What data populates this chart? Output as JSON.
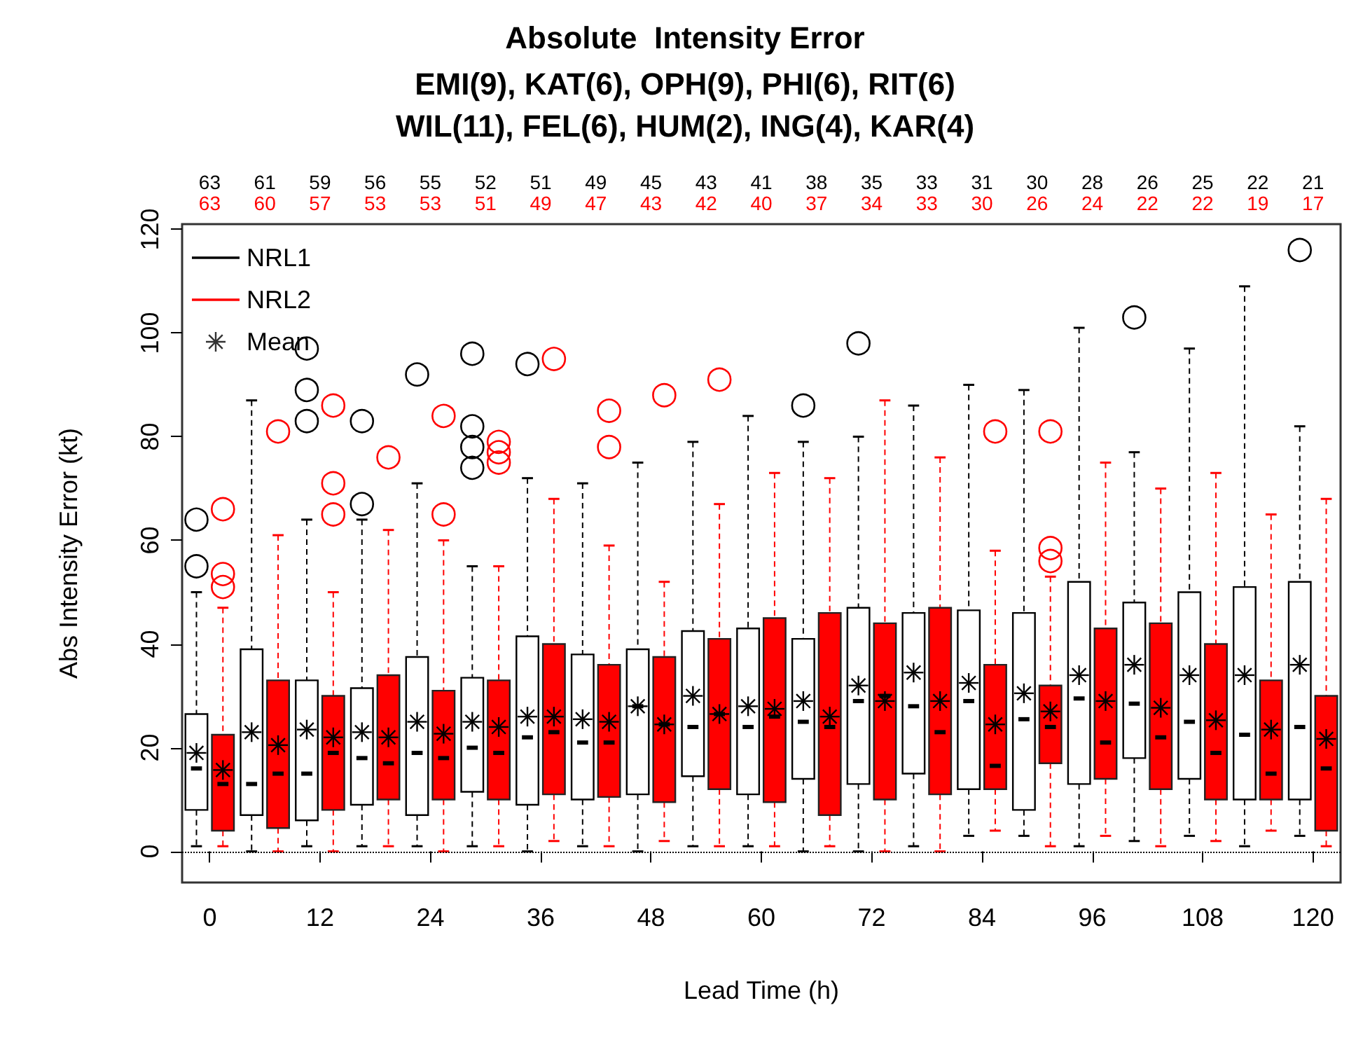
{
  "chart_data": {
    "type": "box",
    "title": "Absolute  Intensity Error",
    "subtitle": "EMI(9), KAT(6), OPH(9), PHI(6), RIT(6)\nWIL(11), FEL(6), HUM(2), ING(4), KAR(4)",
    "xlabel": "Lead Time (h)",
    "ylabel": "Abs Intensity Error (kt)",
    "annotations": [
      "Mean"
    ],
    "categories": [
      "0",
      null,
      "12",
      null,
      "24",
      null,
      "36",
      null,
      "48",
      null,
      "60",
      null,
      "72",
      null,
      "84",
      null,
      "96",
      null,
      "108",
      null,
      "120"
    ],
    "ylim": [
      -6,
      121
    ],
    "yticks": [
      0,
      20,
      40,
      60,
      80,
      100,
      120
    ],
    "legend": "top left",
    "ref_lines": [
      {
        "axis": "y",
        "value": 0,
        "color": "#000000",
        "line_style": "dotted"
      }
    ],
    "series": [
      {
        "name": "NRL1",
        "color": "#000000",
        "value_labels": [
          "63",
          "61",
          "59",
          "56",
          "55",
          "52",
          "51",
          "49",
          "45",
          "43",
          "41",
          "38",
          "35",
          "33",
          "31",
          "30",
          "28",
          "26",
          "25",
          "22",
          "21"
        ],
        "boxes": [
          {
            "low": 1,
            "q1": 8,
            "median": 16,
            "q3": 26.5,
            "high": 50,
            "mean": 19,
            "outliers": [
              55,
              64
            ]
          },
          {
            "low": 0,
            "q1": 7,
            "median": 13,
            "q3": 39,
            "high": 87,
            "mean": 23
          },
          {
            "low": 1,
            "q1": 6,
            "median": 15,
            "q3": 33,
            "high": 64,
            "mean": 23.5,
            "outliers": [
              83,
              89,
              97
            ]
          },
          {
            "low": 1,
            "q1": 9,
            "median": 18,
            "q3": 31.5,
            "high": 64,
            "mean": 23,
            "outliers": [
              67,
              83
            ]
          },
          {
            "low": 1,
            "q1": 7,
            "median": 19,
            "q3": 37.5,
            "high": 71,
            "mean": 25,
            "outliers": [
              92
            ]
          },
          {
            "low": 1,
            "q1": 11.5,
            "median": 20,
            "q3": 33.5,
            "high": 55,
            "mean": 25,
            "outliers": [
              74,
              78,
              82,
              96
            ]
          },
          {
            "low": 0,
            "q1": 9,
            "median": 22,
            "q3": 41.5,
            "high": 72,
            "mean": 26,
            "outliers": [
              94
            ]
          },
          {
            "low": 1,
            "q1": 10,
            "median": 21,
            "q3": 38,
            "high": 71,
            "mean": 25.5
          },
          {
            "low": 0,
            "q1": 11,
            "median": 28,
            "q3": 39,
            "high": 75,
            "mean": 28
          },
          {
            "low": 1,
            "q1": 14.5,
            "median": 24,
            "q3": 42.5,
            "high": 79,
            "mean": 30
          },
          {
            "low": 1,
            "q1": 11,
            "median": 24,
            "q3": 43,
            "high": 84,
            "mean": 28
          },
          {
            "low": 0,
            "q1": 14,
            "median": 25,
            "q3": 41,
            "high": 79,
            "mean": 29,
            "outliers": [
              86
            ]
          },
          {
            "low": 0,
            "q1": 13,
            "median": 29,
            "q3": 47,
            "high": 80,
            "mean": 32,
            "outliers": [
              98
            ]
          },
          {
            "low": 1,
            "q1": 15,
            "median": 28,
            "q3": 46,
            "high": 86,
            "mean": 34.5
          },
          {
            "low": 3,
            "q1": 12,
            "median": 29,
            "q3": 46.5,
            "high": 90,
            "mean": 32.5
          },
          {
            "low": 3,
            "q1": 8,
            "median": 25.5,
            "q3": 46,
            "high": 89,
            "mean": 30.5
          },
          {
            "low": 1,
            "q1": 13,
            "median": 29.5,
            "q3": 52,
            "high": 101,
            "mean": 34
          },
          {
            "low": 2,
            "q1": 18,
            "median": 28.5,
            "q3": 48,
            "high": 77,
            "mean": 36,
            "outliers": [
              103
            ]
          },
          {
            "low": 3,
            "q1": 14,
            "median": 25,
            "q3": 50,
            "high": 97,
            "mean": 34
          },
          {
            "low": 1,
            "q1": 10,
            "median": 22.5,
            "q3": 51,
            "high": 109,
            "mean": 34
          },
          {
            "low": 3,
            "q1": 10,
            "median": 24,
            "q3": 52,
            "high": 82,
            "mean": 36,
            "outliers": [
              116
            ]
          }
        ]
      },
      {
        "name": "NRL2",
        "color": "#ff0000",
        "value_labels": [
          "63",
          "60",
          "57",
          "53",
          "53",
          "51",
          "49",
          "47",
          "43",
          "42",
          "40",
          "37",
          "34",
          "33",
          "30",
          "26",
          "24",
          "22",
          "22",
          "19",
          "17"
        ],
        "boxes": [
          {
            "low": 1,
            "q1": 4,
            "median": 13,
            "q3": 22.5,
            "high": 47,
            "mean": 15.7,
            "outliers": [
              51,
              53.5,
              66
            ]
          },
          {
            "low": 0,
            "q1": 4.5,
            "median": 15,
            "q3": 33,
            "high": 61,
            "mean": 20.5,
            "outliers": [
              81
            ]
          },
          {
            "low": 0,
            "q1": 8,
            "median": 19,
            "q3": 30,
            "high": 50,
            "mean": 22,
            "outliers": [
              65,
              71,
              86
            ]
          },
          {
            "low": 1,
            "q1": 10,
            "median": 17,
            "q3": 34,
            "high": 62,
            "mean": 22,
            "outliers": [
              76
            ]
          },
          {
            "low": 0,
            "q1": 10,
            "median": 18,
            "q3": 31,
            "high": 60,
            "mean": 22.7,
            "outliers": [
              65,
              84
            ]
          },
          {
            "low": 1,
            "q1": 10,
            "median": 19,
            "q3": 33,
            "high": 55,
            "mean": 24,
            "outliers": [
              75,
              77,
              79
            ]
          },
          {
            "low": 2,
            "q1": 11,
            "median": 23,
            "q3": 40,
            "high": 68,
            "mean": 26,
            "outliers": [
              95
            ]
          },
          {
            "low": 1,
            "q1": 10.5,
            "median": 21,
            "q3": 36,
            "high": 59,
            "mean": 25,
            "outliers": [
              78,
              85
            ]
          },
          {
            "low": 2,
            "q1": 9.5,
            "median": 24.5,
            "q3": 37.5,
            "high": 52,
            "mean": 24.5,
            "outliers": [
              88
            ]
          },
          {
            "low": 1,
            "q1": 12,
            "median": 26.5,
            "q3": 41,
            "high": 67,
            "mean": 26.5,
            "outliers": [
              91
            ]
          },
          {
            "low": 1,
            "q1": 9.5,
            "median": 26,
            "q3": 45,
            "high": 73,
            "mean": 27.5
          },
          {
            "low": 1,
            "q1": 7,
            "median": 24,
            "q3": 46,
            "high": 72,
            "mean": 26
          },
          {
            "low": 0,
            "q1": 10,
            "median": 30,
            "q3": 44,
            "high": 87,
            "mean": 29
          },
          {
            "low": 0,
            "q1": 11,
            "median": 23,
            "q3": 47,
            "high": 76,
            "mean": 29
          },
          {
            "low": 4,
            "q1": 12,
            "median": 16.5,
            "q3": 36,
            "high": 58,
            "mean": 24.5,
            "outliers": [
              81
            ]
          },
          {
            "low": 1,
            "q1": 17,
            "median": 24,
            "q3": 32,
            "high": 53,
            "mean": 27,
            "outliers": [
              56,
              58.5,
              81
            ]
          },
          {
            "low": 3,
            "q1": 14,
            "median": 21,
            "q3": 43,
            "high": 75,
            "mean": 29
          },
          {
            "low": 1,
            "q1": 12,
            "median": 22,
            "q3": 44,
            "high": 70,
            "mean": 27.7
          },
          {
            "low": 2,
            "q1": 10,
            "median": 19,
            "q3": 40,
            "high": 73,
            "mean": 25.3
          },
          {
            "low": 4,
            "q1": 10,
            "median": 15,
            "q3": 33,
            "high": 65,
            "mean": 23.5
          },
          {
            "low": 1,
            "q1": 4,
            "median": 16,
            "q3": 30,
            "high": 68,
            "mean": 21.7
          }
        ]
      }
    ]
  }
}
